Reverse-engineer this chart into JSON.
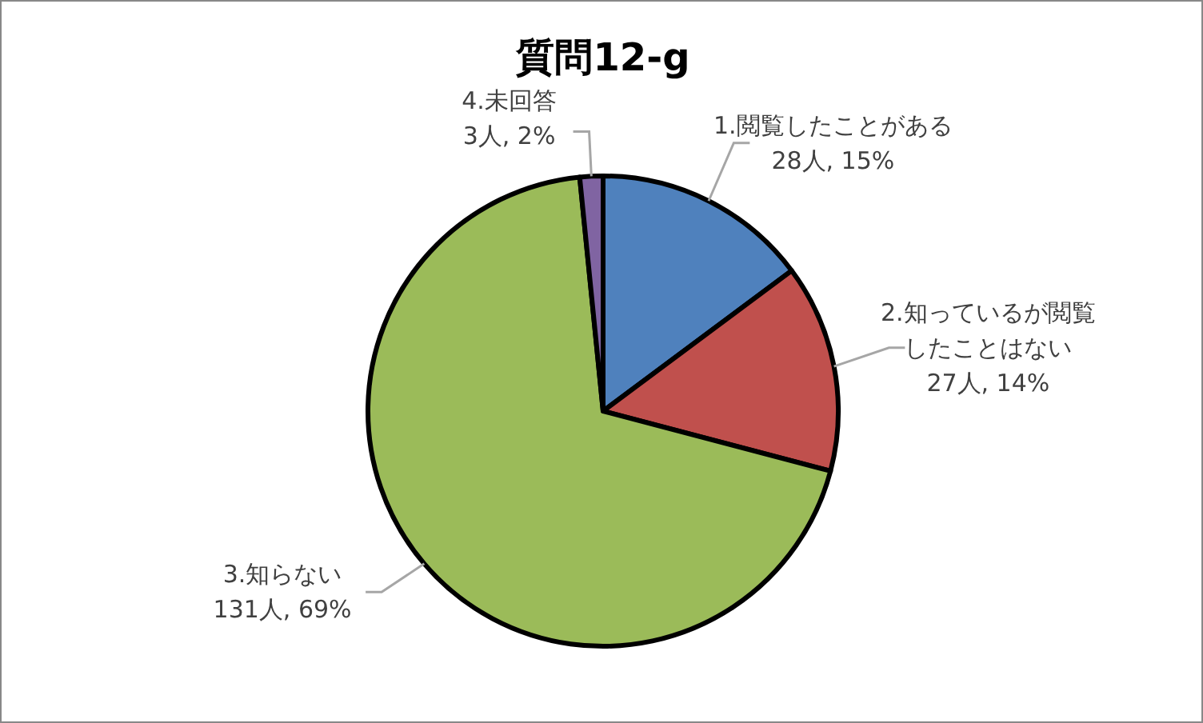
{
  "chart_data": {
    "type": "pie",
    "title": "質問12-g",
    "categories": [
      "1.閲覧したことがある",
      "2.知っているが閲覧したことはない",
      "3.知らない",
      "4.未回答"
    ],
    "values": [
      28,
      27,
      131,
      3
    ],
    "value_labels": [
      "28人, 15%",
      "27人, 14%",
      "131人, 69%",
      "3人, 2%"
    ],
    "colors": [
      "#4f81bd",
      "#c0504d",
      "#9bbb59",
      "#8064a2"
    ]
  }
}
